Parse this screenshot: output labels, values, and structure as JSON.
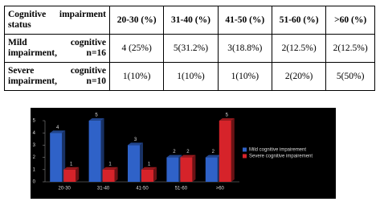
{
  "table": {
    "header": [
      "Cognitive impairment status",
      "20-30 (%)",
      "31-40 (%)",
      "41-50 (%)",
      "51-60 (%)",
      ">60 (%)"
    ],
    "rows": [
      [
        "Mild cognitive impairment, n=16",
        "4 (25%)",
        "5(31.2%)",
        "3(18.8%)",
        "2(12.5%)",
        "2(12.5%)"
      ],
      [
        "Severe cognitive impairment, n=10",
        "1(10%)",
        "1(10%)",
        "1(10%)",
        "2(20%)",
        "5(50%)"
      ]
    ]
  },
  "chart_data": {
    "type": "bar",
    "categories": [
      "20-30",
      "31-40",
      "41-50",
      "51-60",
      ">60"
    ],
    "series": [
      {
        "name": "Mild cognitive impairement",
        "color": "#2f62c8",
        "values": [
          4,
          5,
          3,
          2,
          2
        ]
      },
      {
        "name": "Severe cognitive impairement",
        "color": "#d6232a",
        "values": [
          1,
          1,
          1,
          2,
          5
        ]
      }
    ],
    "ylim": [
      0,
      5
    ],
    "yticks": [
      0,
      1,
      2,
      3,
      4,
      5
    ],
    "legend": "right"
  }
}
